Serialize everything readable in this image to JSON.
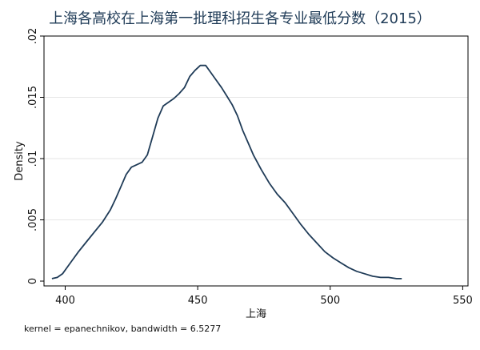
{
  "chart_data": {
    "type": "line",
    "title": "上海各高校在上海第一批理科招生各专业最低分数（2015）",
    "xlabel": "上海",
    "ylabel": "Density",
    "note": "kernel = epanechnikov, bandwidth = 6.5277",
    "xlim": [
      392,
      552
    ],
    "ylim": [
      0,
      0.02
    ],
    "x_ticks": [
      400,
      450,
      500,
      550
    ],
    "x_tick_labels": [
      "400",
      "450",
      "500",
      "550"
    ],
    "y_ticks": [
      0,
      0.005,
      0.01,
      0.015,
      0.02
    ],
    "y_tick_labels": [
      "0",
      ".005",
      ".01",
      ".015",
      ".02"
    ],
    "grid": "horizontal",
    "line_color": "#1f3b57",
    "series": [
      {
        "x": [
          395,
          397,
          399,
          401,
          403,
          405,
          408,
          411,
          414,
          417,
          419,
          421,
          423,
          425,
          427,
          429,
          431,
          433,
          435,
          437,
          439,
          441,
          443,
          445,
          447,
          449,
          451,
          453,
          455,
          457,
          459,
          461,
          463,
          465,
          467,
          469,
          471,
          474,
          477,
          480,
          483,
          486,
          489,
          492,
          495,
          498,
          501,
          504,
          507,
          510,
          513,
          516,
          519,
          522,
          525,
          527
        ],
        "y": [
          0.0002,
          0.0003,
          0.0006,
          0.0012,
          0.0018,
          0.0024,
          0.0032,
          0.004,
          0.0048,
          0.0058,
          0.0067,
          0.0077,
          0.0087,
          0.0093,
          0.0095,
          0.0097,
          0.0103,
          0.0118,
          0.0133,
          0.0143,
          0.0146,
          0.0149,
          0.0153,
          0.0158,
          0.0167,
          0.0172,
          0.0176,
          0.0176,
          0.017,
          0.0164,
          0.0158,
          0.0151,
          0.0144,
          0.0135,
          0.0123,
          0.0113,
          0.0103,
          0.0091,
          0.008,
          0.0071,
          0.0064,
          0.0055,
          0.0046,
          0.0038,
          0.0031,
          0.0024,
          0.0019,
          0.0015,
          0.0011,
          0.0008,
          0.0006,
          0.0004,
          0.0003,
          0.0003,
          0.0002,
          0.0002
        ]
      }
    ]
  }
}
